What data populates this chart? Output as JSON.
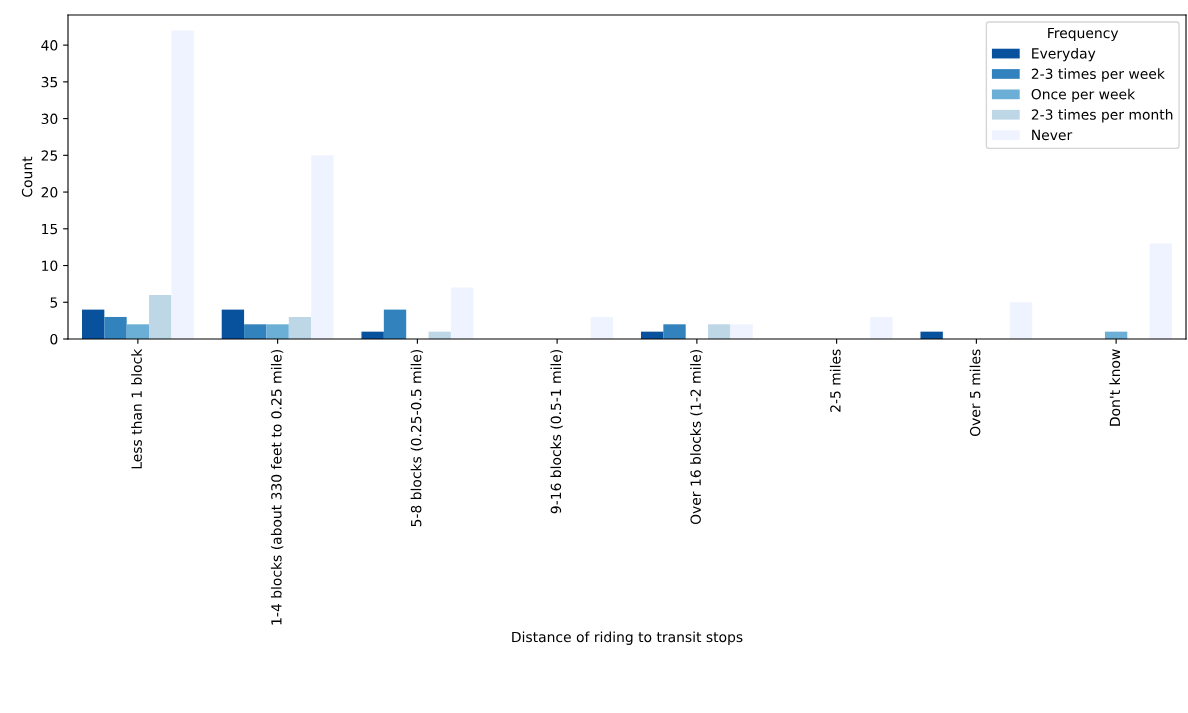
{
  "chart_data": {
    "type": "bar",
    "xlabel": "Distance of riding to transit stops",
    "ylabel": "Count",
    "legend_title": "Frequency",
    "categories": [
      "Less than 1 block",
      "1-4 blocks (about 330 feet to 0.25 mile)",
      "5-8 blocks (0.25-0.5 mile)",
      "9-16 blocks (0.5-1 mile)",
      "Over 16 blocks (1-2 mile)",
      "2-5 miles",
      "Over 5 miles",
      "Don't know"
    ],
    "series": [
      {
        "name": "Everyday",
        "color": "#08519c",
        "values": [
          4,
          4,
          1,
          0,
          1,
          0,
          1,
          0
        ]
      },
      {
        "name": "2-3 times per week",
        "color": "#3182bd",
        "values": [
          3,
          2,
          4,
          0,
          2,
          0,
          0,
          0
        ]
      },
      {
        "name": "Once per week",
        "color": "#6baed6",
        "values": [
          2,
          2,
          0,
          0,
          0,
          0,
          0,
          1
        ]
      },
      {
        "name": "2-3 times per month",
        "color": "#bdd7e7",
        "values": [
          6,
          3,
          1,
          0,
          2,
          0,
          0,
          0
        ]
      },
      {
        "name": "Never",
        "color": "#eff3ff",
        "values": [
          42,
          25,
          7,
          3,
          2,
          3,
          5,
          13
        ]
      }
    ],
    "ylim": [
      0,
      44.1
    ],
    "yticks": [
      0,
      5,
      10,
      15,
      20,
      25,
      30,
      35,
      40
    ],
    "grid": false,
    "legend": "top right"
  }
}
